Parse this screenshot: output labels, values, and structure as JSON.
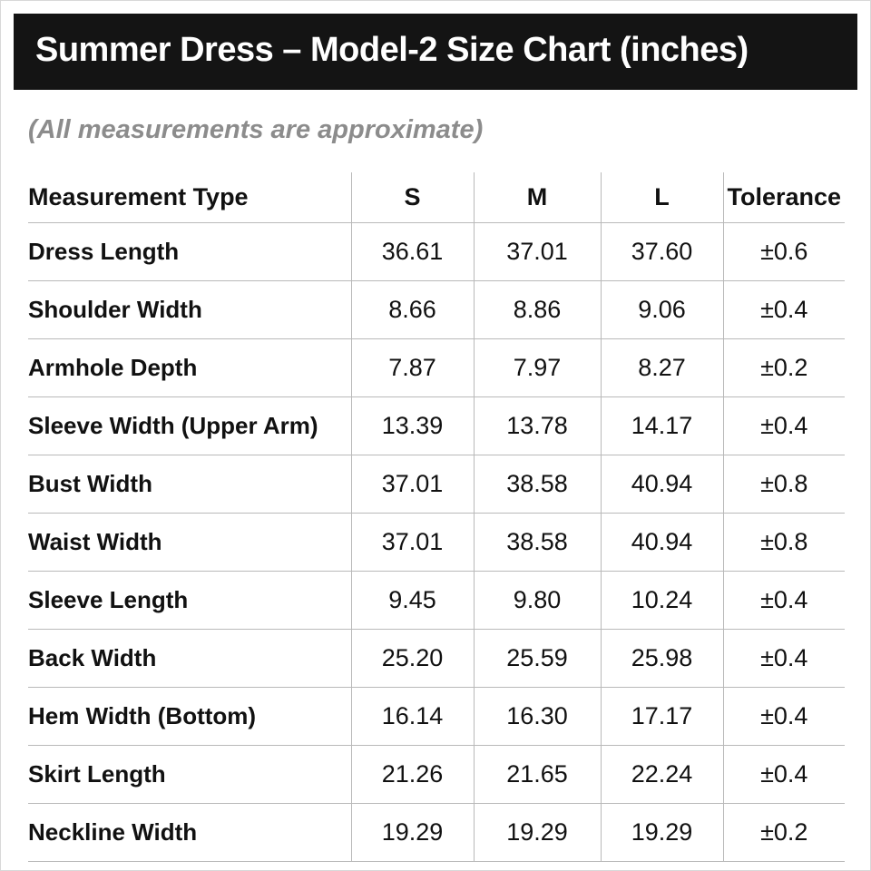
{
  "header": {
    "title": "Summer Dress – Model-2 Size Chart (inches)"
  },
  "subtitle": "(All measurements are approximate)",
  "table": {
    "columns": [
      "Measurement Type",
      "S",
      "M",
      "L",
      "Tolerance"
    ],
    "rows": [
      [
        "Dress Length",
        "36.61",
        "37.01",
        "37.60",
        "±0.6"
      ],
      [
        "Shoulder Width",
        "8.66",
        "8.86",
        "9.06",
        "±0.4"
      ],
      [
        "Armhole Depth",
        "7.87",
        "7.97",
        "8.27",
        "±0.2"
      ],
      [
        "Sleeve Width (Upper Arm)",
        "13.39",
        "13.78",
        "14.17",
        "±0.4"
      ],
      [
        "Bust Width",
        "37.01",
        "38.58",
        "40.94",
        "±0.8"
      ],
      [
        "Waist Width",
        "37.01",
        "38.58",
        "40.94",
        "±0.8"
      ],
      [
        "Sleeve Length",
        "9.45",
        "9.80",
        "10.24",
        "±0.4"
      ],
      [
        "Back Width",
        "25.20",
        "25.59",
        "25.98",
        "±0.4"
      ],
      [
        "Hem Width (Bottom)",
        "16.14",
        "16.30",
        "17.17",
        "±0.4"
      ],
      [
        "Skirt Length",
        "21.26",
        "21.65",
        "22.24",
        "±0.4"
      ],
      [
        "Neckline Width",
        "19.29",
        "19.29",
        "19.29",
        "±0.2"
      ]
    ]
  },
  "colors": {
    "title_bar_bg": "#141414",
    "title_text": "#ffffff",
    "subtitle_text": "#8c8c8c",
    "grid_line": "#b9b9b9",
    "body_text": "#111111"
  }
}
